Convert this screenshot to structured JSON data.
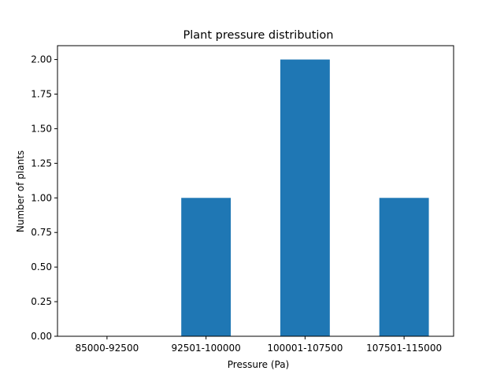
{
  "chart_data": {
    "type": "bar",
    "title": "Plant pressure distribution",
    "xlabel": "Pressure (Pa)",
    "ylabel": "Number of plants",
    "categories": [
      "85000-92500",
      "92501-100000",
      "100001-107500",
      "107501-115000"
    ],
    "values": [
      0,
      1,
      2,
      1
    ],
    "ylim": [
      0,
      2.1
    ],
    "yticks": [
      "0.00",
      "0.25",
      "0.50",
      "0.75",
      "1.00",
      "1.25",
      "1.50",
      "1.75",
      "2.00"
    ],
    "grid": false,
    "bar_color": "#1f77b4"
  }
}
